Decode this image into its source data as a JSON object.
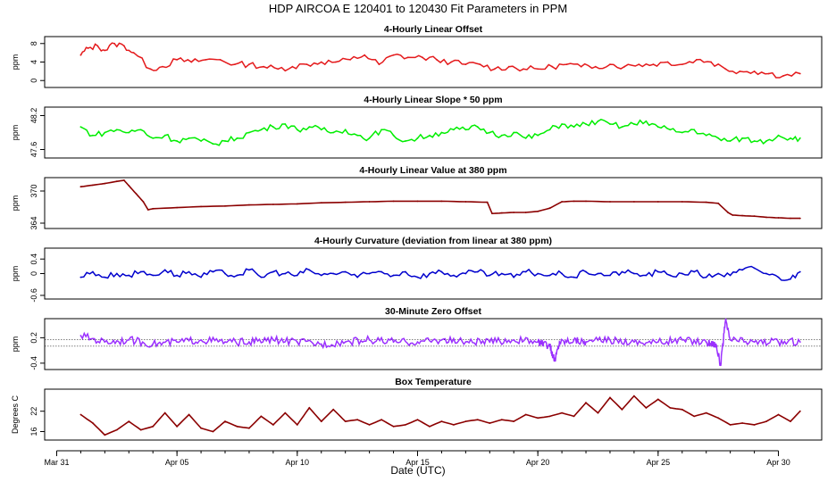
{
  "title": "HDP   AIRCOA E   120401 to 120430   Fit Parameters in PPM",
  "xlabel": "Date (UTC)",
  "x_ticks": [
    {
      "label": "Mar 31",
      "day": 0
    },
    {
      "label": "Apr 05",
      "day": 5
    },
    {
      "label": "Apr 10",
      "day": 10
    },
    {
      "label": "Apr 15",
      "day": 15
    },
    {
      "label": "Apr 20",
      "day": 20
    },
    {
      "label": "Apr 25",
      "day": 25
    },
    {
      "label": "Apr 30",
      "day": 30
    }
  ],
  "chart_data": [
    {
      "type": "line",
      "title": "4-Hourly Linear Offset",
      "ylabel": "ppm",
      "color": "#e41a1c",
      "ylim": [
        -1.5,
        9.5
      ],
      "yticks": [
        0,
        4,
        8
      ],
      "x_days": [
        1,
        1.3,
        1.7,
        2.0,
        2.4,
        2.8,
        3.2,
        3.9,
        4.4,
        5.0,
        5.6,
        6.2,
        6.8,
        7.4,
        8.0,
        8.6,
        9.2,
        9.8,
        10.4,
        11.0,
        11.6,
        12.2,
        12.8,
        13.4,
        14.0,
        14.6,
        15.2,
        15.8,
        16.4,
        17.0,
        17.6,
        18.2,
        18.8,
        19.4,
        20.0,
        20.6,
        21.2,
        21.8,
        22.4,
        23.0,
        23.6,
        24.2,
        24.8,
        25.4,
        26.0,
        26.6,
        27.2,
        27.8,
        28.4,
        29.0,
        29.6,
        30.2,
        30.9
      ],
      "values": [
        5.5,
        7.0,
        7.5,
        6.5,
        8.0,
        7.5,
        6.0,
        2.5,
        3.0,
        4.5,
        4.0,
        4.5,
        4.5,
        3.5,
        3.5,
        3.0,
        2.5,
        3.0,
        3.5,
        4.0,
        4.0,
        4.5,
        5.5,
        3.5,
        5.5,
        5.0,
        5.0,
        4.5,
        4.0,
        3.5,
        3.5,
        2.5,
        3.0,
        2.5,
        2.5,
        3.0,
        3.5,
        3.0,
        3.0,
        3.5,
        3.0,
        3.5,
        3.5,
        4.0,
        3.5,
        4.5,
        4.0,
        2.5,
        2.0,
        2.0,
        1.5,
        1.0,
        1.5
      ]
    },
    {
      "type": "line",
      "title": "4-Hourly Linear Slope * 50 ppm",
      "ylabel": "ppm",
      "color": "#00ee00",
      "ylim": [
        47.45,
        48.35
      ],
      "yticks": [
        47.6,
        48.2
      ],
      "x_days": [
        1,
        1.5,
        2.0,
        2.5,
        3.0,
        3.5,
        4.0,
        4.5,
        5.0,
        5.5,
        6.0,
        6.5,
        7.0,
        7.5,
        8.0,
        8.5,
        9.0,
        9.5,
        10.0,
        10.5,
        11.0,
        11.5,
        12.0,
        12.5,
        13.0,
        13.5,
        14.0,
        14.5,
        15.0,
        15.5,
        16.0,
        16.5,
        17.0,
        17.5,
        18.0,
        18.5,
        19.0,
        19.5,
        20.0,
        20.5,
        21.0,
        21.5,
        22.0,
        22.5,
        23.0,
        23.5,
        24.0,
        24.5,
        25.0,
        25.5,
        26.0,
        26.5,
        27.0,
        27.5,
        28.0,
        28.5,
        29.0,
        29.5,
        30.0,
        30.5,
        30.9
      ],
      "values": [
        48.0,
        47.85,
        47.9,
        47.95,
        47.9,
        47.95,
        47.8,
        47.85,
        47.75,
        47.8,
        47.75,
        47.7,
        47.75,
        47.8,
        47.9,
        47.95,
        48.0,
        48.05,
        47.95,
        48.0,
        47.95,
        47.9,
        47.95,
        47.85,
        47.8,
        47.95,
        47.85,
        47.75,
        47.8,
        47.85,
        47.9,
        47.95,
        47.95,
        48.0,
        47.9,
        47.85,
        47.9,
        47.8,
        47.85,
        47.95,
        48.05,
        48.0,
        48.05,
        48.1,
        48.05,
        48.0,
        48.05,
        48.1,
        48.0,
        47.95,
        47.9,
        47.95,
        47.85,
        47.8,
        47.75,
        47.8,
        47.75,
        47.75,
        47.85,
        47.8,
        47.8
      ]
    },
    {
      "type": "line",
      "title": "4-Hourly Linear Value at 380 ppm",
      "ylabel": "ppm",
      "color": "#8b0000",
      "ylim": [
        363,
        372.5
      ],
      "yticks": [
        364,
        370
      ],
      "x_days": [
        1.0,
        1.5,
        2.0,
        2.5,
        2.8,
        3.0,
        3.3,
        3.6,
        3.8,
        4.0,
        5.0,
        6.0,
        7.0,
        8.0,
        9.0,
        10.0,
        11.0,
        12.0,
        13.0,
        14.0,
        15.0,
        16.0,
        17.0,
        17.9,
        18.1,
        18.5,
        19.0,
        19.5,
        20.0,
        20.5,
        21.0,
        21.5,
        22.0,
        23.0,
        24.0,
        25.0,
        26.0,
        27.0,
        27.5,
        27.9,
        28.1,
        28.5,
        29.0,
        29.5,
        30.0,
        30.5,
        30.9
      ],
      "values": [
        370.8,
        371.1,
        371.4,
        371.8,
        372.0,
        371.0,
        369.5,
        368.0,
        366.5,
        366.7,
        366.9,
        367.1,
        367.2,
        367.4,
        367.5,
        367.6,
        367.8,
        367.9,
        368.0,
        368.1,
        368.1,
        368.1,
        368.0,
        367.9,
        365.8,
        365.9,
        366.0,
        366.0,
        366.2,
        366.8,
        368.0,
        368.1,
        368.1,
        368.0,
        368.0,
        368.0,
        368.0,
        367.9,
        367.7,
        366.0,
        365.5,
        365.4,
        365.3,
        365.1,
        365.0,
        364.9,
        364.9
      ]
    },
    {
      "type": "line",
      "title": "4-Hourly Curvature (deviation from linear at 380 ppm)",
      "ylabel": "ppm",
      "color": "#0000cd",
      "ylim": [
        -0.7,
        0.7
      ],
      "yticks": [
        -0.6,
        0.0,
        0.4
      ],
      "x_days": [
        1.0,
        1.5,
        2.0,
        2.5,
        3.0,
        3.5,
        4.0,
        4.5,
        5.0,
        5.5,
        6.0,
        6.5,
        7.0,
        7.5,
        8.0,
        8.5,
        9.0,
        9.5,
        10.0,
        10.5,
        11.0,
        11.5,
        12.0,
        12.5,
        13.0,
        13.5,
        14.0,
        14.5,
        15.0,
        15.5,
        16.0,
        16.5,
        17.0,
        17.5,
        18.0,
        18.5,
        19.0,
        19.5,
        20.0,
        20.5,
        21.0,
        21.5,
        22.0,
        22.5,
        23.0,
        23.5,
        24.0,
        24.5,
        25.0,
        25.5,
        26.0,
        26.5,
        27.0,
        27.5,
        28.0,
        28.5,
        29.0,
        29.5,
        30.0,
        30.5,
        30.9
      ],
      "values": [
        -0.1,
        0.05,
        -0.1,
        0.0,
        -0.05,
        0.05,
        -0.05,
        0.1,
        -0.05,
        0.05,
        -0.1,
        0.05,
        0.0,
        -0.05,
        0.1,
        -0.1,
        0.05,
        0.0,
        -0.05,
        0.1,
        -0.05,
        0.0,
        0.05,
        -0.1,
        0.0,
        0.05,
        -0.05,
        0.05,
        -0.1,
        0.0,
        0.05,
        -0.05,
        0.0,
        0.05,
        -0.05,
        0.0,
        -0.1,
        0.05,
        0.0,
        -0.05,
        0.0,
        -0.1,
        0.05,
        0.0,
        -0.05,
        0.05,
        0.0,
        -0.05,
        0.05,
        -0.05,
        0.0,
        0.05,
        -0.1,
        0.0,
        -0.05,
        0.1,
        0.15,
        0.0,
        -0.1,
        -0.15,
        0.05
      ]
    },
    {
      "type": "line",
      "title": "30-Minute Zero Offset",
      "ylabel": "ppm",
      "color": "#9b30ff",
      "ylim": [
        -0.55,
        0.65
      ],
      "yticks": [
        -0.4,
        0.2
      ],
      "reference_lines": [
        0.15,
        0.0
      ],
      "x_days": [
        1.0,
        2.0,
        3.0,
        4.0,
        5.0,
        6.0,
        7.0,
        8.0,
        9.0,
        10.0,
        11.0,
        12.0,
        13.0,
        14.0,
        15.0,
        16.0,
        17.0,
        18.0,
        19.0,
        20.0,
        20.5,
        20.7,
        20.9,
        21.5,
        22.0,
        23.0,
        24.0,
        25.0,
        26.0,
        27.0,
        27.4,
        27.6,
        27.8,
        28.0,
        29.0,
        30.0,
        30.9
      ],
      "values": [
        0.25,
        0.1,
        0.15,
        0.05,
        0.1,
        0.15,
        0.1,
        0.1,
        0.15,
        0.1,
        0.05,
        0.1,
        0.15,
        0.1,
        0.1,
        0.15,
        0.1,
        0.1,
        0.15,
        0.1,
        0.0,
        -0.35,
        0.1,
        0.15,
        0.1,
        0.15,
        0.1,
        0.1,
        0.15,
        0.1,
        0.05,
        -0.45,
        0.6,
        0.15,
        0.1,
        0.1,
        0.1
      ]
    },
    {
      "type": "line",
      "title": "Box Temperature",
      "ylabel": "Degrees C",
      "color": "#8b0000",
      "ylim": [
        13.5,
        28.5
      ],
      "yticks": [
        16,
        22
      ],
      "x_days": [
        1.0,
        1.5,
        2.0,
        2.5,
        3.0,
        3.5,
        4.0,
        4.5,
        5.0,
        5.5,
        6.0,
        6.5,
        7.0,
        7.5,
        8.0,
        8.5,
        9.0,
        9.5,
        10.0,
        10.5,
        11.0,
        11.5,
        12.0,
        12.5,
        13.0,
        13.5,
        14.0,
        14.5,
        15.0,
        15.5,
        16.0,
        16.5,
        17.0,
        17.5,
        18.0,
        18.5,
        19.0,
        19.5,
        20.0,
        20.5,
        21.0,
        21.5,
        22.0,
        22.5,
        23.0,
        23.5,
        24.0,
        24.5,
        25.0,
        25.5,
        26.0,
        26.5,
        27.0,
        27.5,
        28.0,
        28.5,
        29.0,
        29.5,
        30.0,
        30.5,
        30.9
      ],
      "values": [
        21.0,
        18.5,
        15.0,
        16.5,
        19.0,
        16.5,
        17.5,
        21.5,
        17.5,
        21.0,
        17.0,
        16.0,
        19.0,
        17.5,
        17.0,
        20.5,
        18.0,
        21.5,
        18.0,
        23.0,
        19.0,
        22.5,
        19.0,
        19.5,
        18.0,
        19.5,
        17.5,
        18.0,
        19.5,
        17.5,
        19.0,
        18.0,
        19.0,
        19.5,
        18.5,
        19.5,
        19.0,
        21.0,
        20.0,
        20.5,
        21.5,
        20.5,
        24.5,
        21.5,
        26.0,
        22.5,
        26.5,
        23.0,
        25.5,
        23.0,
        22.5,
        20.5,
        21.5,
        20.0,
        18.0,
        18.5,
        18.0,
        19.0,
        21.0,
        19.0,
        22.0
      ]
    }
  ]
}
